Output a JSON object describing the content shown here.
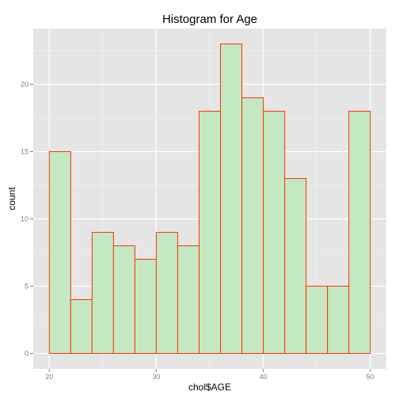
{
  "chart_data": {
    "type": "bar",
    "title": "Histogram for Age",
    "xlabel": "chol$AGE",
    "ylabel": "count",
    "bin_width": 2,
    "bins": [
      {
        "start": 20,
        "end": 22,
        "count": 15
      },
      {
        "start": 22,
        "end": 24,
        "count": 4
      },
      {
        "start": 24,
        "end": 26,
        "count": 9
      },
      {
        "start": 26,
        "end": 28,
        "count": 8
      },
      {
        "start": 28,
        "end": 30,
        "count": 7
      },
      {
        "start": 30,
        "end": 32,
        "count": 9
      },
      {
        "start": 32,
        "end": 34,
        "count": 8
      },
      {
        "start": 34,
        "end": 36,
        "count": 18
      },
      {
        "start": 36,
        "end": 38,
        "count": 23
      },
      {
        "start": 38,
        "end": 40,
        "count": 19
      },
      {
        "start": 40,
        "end": 42,
        "count": 18
      },
      {
        "start": 42,
        "end": 44,
        "count": 13
      },
      {
        "start": 44,
        "end": 46,
        "count": 5
      },
      {
        "start": 46,
        "end": 48,
        "count": 5
      },
      {
        "start": 48,
        "end": 50,
        "count": 18
      }
    ],
    "xlim": [
      18.5,
      51.5
    ],
    "ylim": [
      -1.15,
      24.15
    ],
    "x_ticks": [
      20,
      30,
      40,
      50
    ],
    "x_tick_labels": [
      "20",
      "30",
      "40",
      "50"
    ],
    "y_ticks": [
      0,
      5,
      10,
      15,
      20
    ],
    "y_tick_labels": [
      "0",
      "5",
      "10",
      "15",
      "20"
    ],
    "grid": true,
    "colors": {
      "panel_background": "#e5e5e5",
      "grid_major": "#ffffff",
      "grid_minor": "#f2f2f2",
      "bar_fill": "#c4e8c2",
      "bar_outline": "#ff3300",
      "tick_label": "#7f7f7f"
    }
  }
}
